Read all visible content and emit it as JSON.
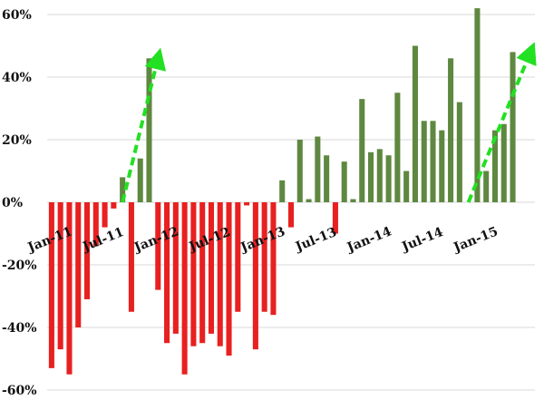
{
  "chart_data": {
    "type": "bar",
    "title": "",
    "xlabel": "",
    "ylabel": "",
    "ylim": [
      -60,
      60
    ],
    "y_ticks": [
      {
        "value": 60,
        "label": "60%"
      },
      {
        "value": 40,
        "label": "40%"
      },
      {
        "value": 20,
        "label": "20%"
      },
      {
        "value": 0,
        "label": "0%"
      },
      {
        "value": -20,
        "label": "-20%"
      },
      {
        "value": -40,
        "label": "-40%"
      },
      {
        "value": -60,
        "label": "-60%"
      }
    ],
    "x_tick_labels": [
      {
        "index": 0,
        "label": "Jan-11"
      },
      {
        "index": 6,
        "label": "Jul-11"
      },
      {
        "index": 12,
        "label": "Jan-12"
      },
      {
        "index": 18,
        "label": "Jul-12"
      },
      {
        "index": 24,
        "label": "Jan-13"
      },
      {
        "index": 30,
        "label": "Jul-13"
      },
      {
        "index": 36,
        "label": "Jan-14"
      },
      {
        "index": 42,
        "label": "Jul-14"
      },
      {
        "index": 48,
        "label": "Jan-15"
      }
    ],
    "grid": true,
    "legend": "none",
    "colors": {
      "positive": "#5e8840",
      "negative": "#e82020",
      "arrow": "#22e022"
    },
    "categories": [
      "Jan-11",
      "Feb-11",
      "Mar-11",
      "Apr-11",
      "May-11",
      "Jun-11",
      "Jul-11",
      "Aug-11",
      "Sep-11",
      "Oct-11",
      "Nov-11",
      "Dec-11",
      "Jan-12",
      "Feb-12",
      "Mar-12",
      "Apr-12",
      "May-12",
      "Jun-12",
      "Jul-12",
      "Aug-12",
      "Sep-12",
      "Oct-12",
      "Nov-12",
      "Dec-12",
      "Jan-13",
      "Feb-13",
      "Mar-13",
      "Apr-13",
      "May-13",
      "Jun-13",
      "Jul-13",
      "Aug-13",
      "Sep-13",
      "Oct-13",
      "Nov-13",
      "Dec-13",
      "Jan-14",
      "Feb-14",
      "Mar-14",
      "Apr-14",
      "May-14",
      "Jun-14",
      "Jul-14",
      "Aug-14",
      "Sep-14",
      "Oct-14",
      "Nov-14",
      "Dec-14",
      "Jan-15",
      "Feb-15",
      "Mar-15",
      "Apr-15",
      "May-15",
      "Jun-15",
      "Jul-15"
    ],
    "values": [
      -53,
      -47,
      -55,
      -40,
      -31,
      -14,
      -8,
      -2,
      8,
      -35,
      14,
      46,
      -28,
      -45,
      -42,
      -55,
      -46,
      -45,
      -42,
      -46,
      -49,
      -35,
      -1,
      -47,
      -35,
      -36,
      7,
      -8,
      20,
      1,
      21,
      15,
      -10,
      13,
      1,
      33,
      16,
      17,
      15,
      35,
      10,
      50,
      26,
      26,
      23,
      46,
      32,
      0,
      62,
      10,
      23,
      25,
      48,
      0,
      0
    ],
    "arrows": [
      {
        "from": {
          "x": "Sep-11",
          "y": 0
        },
        "to": {
          "x": "Jan-12",
          "y": 46
        }
      },
      {
        "from": {
          "x": "Dec-14",
          "y": 0
        },
        "to": {
          "x": "Jul-15",
          "y": 48
        }
      }
    ]
  }
}
